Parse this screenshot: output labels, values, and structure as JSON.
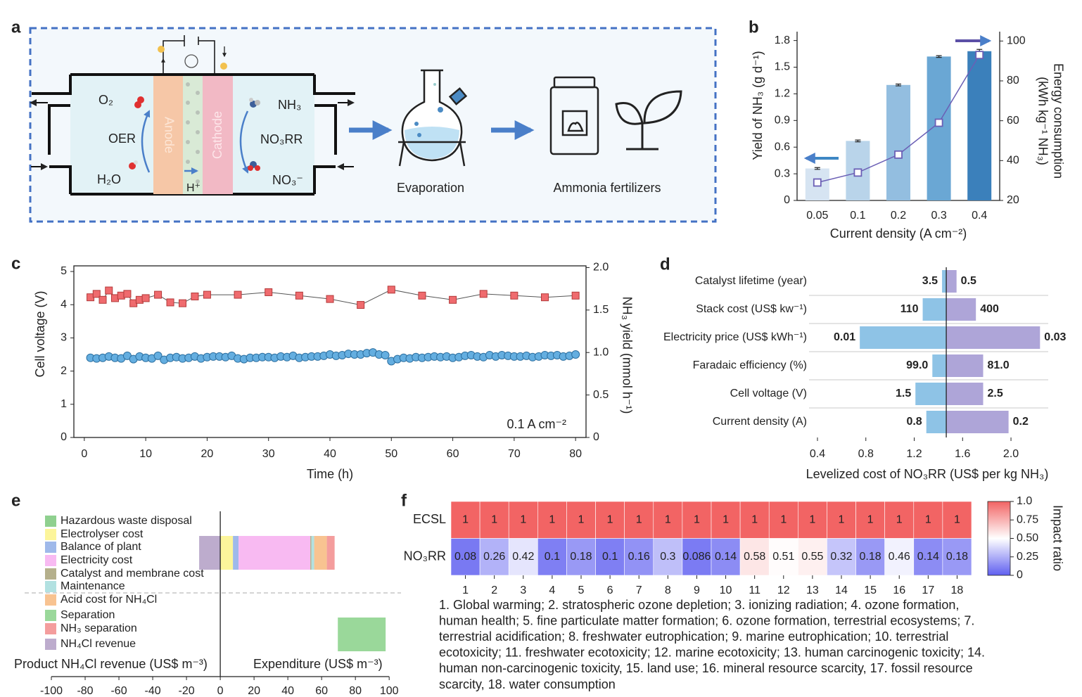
{
  "panel_labels": [
    "a",
    "b",
    "c",
    "d",
    "e",
    "f"
  ],
  "diagram": {
    "anode_side": [
      "O₂",
      "OER",
      "H₂O"
    ],
    "anode": "Anode",
    "cathode": "Cathode",
    "proton": "H⁺",
    "cathode_side": [
      "NH₃",
      "NO₃RR",
      "NO₃⁻"
    ],
    "steps": [
      "Evaporation",
      "Ammonia fertilizers"
    ]
  },
  "chart_data": [
    {
      "type": "bar",
      "xlabel": "Current density (A cm⁻²)",
      "ylabel": "Yield of NH₃ (g d⁻¹)",
      "y2label": [
        "Energy consumption",
        "(kWh kg⁻¹ NH₃)"
      ],
      "categories": [
        "0.05",
        "0.1",
        "0.2",
        "0.3",
        "0.4"
      ],
      "series": [
        {
          "values": [
            0.36,
            0.67,
            1.3,
            1.62,
            1.68
          ],
          "errors": [
            0.01,
            0.01,
            0.01,
            0.01,
            0.02
          ],
          "colors": [
            "#d6e4f2",
            "#b9d4ea",
            "#93bee0",
            "#6aa7d4",
            "#3b80bb"
          ]
        },
        {
          "values": [
            29,
            34,
            43,
            59,
            93
          ],
          "axis": "y2",
          "color": "#6b5fb5"
        }
      ],
      "ylim": [
        0,
        1.9
      ],
      "yticks": [
        0,
        0.3,
        0.6,
        0.9,
        1.2,
        1.5,
        1.8
      ],
      "y2lim": [
        20,
        104.7
      ],
      "y2ticks": [
        20,
        40,
        60,
        80,
        100
      ]
    },
    {
      "type": "line",
      "xlabel": "Time (h)",
      "ylabel": "Cell voltage (V)",
      "y2label": "NH₃ yield (mmol h⁻¹)",
      "annotation": "0.1 A cm⁻²",
      "series": [
        {
          "marker": "circle",
          "color": "#64aee0",
          "x": [
            1,
            2,
            3,
            4,
            5,
            6,
            7,
            8,
            9,
            10,
            11,
            12,
            13,
            14,
            15,
            16,
            17,
            18,
            19,
            20,
            21,
            22,
            23,
            24,
            25,
            26,
            27,
            28,
            29,
            30,
            31,
            32,
            33,
            34,
            35,
            36,
            37,
            38,
            39,
            40,
            41,
            42,
            43,
            44,
            45,
            46,
            47,
            48,
            49,
            50,
            51,
            52,
            53,
            54,
            55,
            56,
            57,
            58,
            59,
            60,
            61,
            62,
            63,
            64,
            65,
            66,
            67,
            68,
            69,
            70,
            71,
            72,
            73,
            74,
            75,
            76,
            77,
            78,
            79,
            80
          ],
          "values": [
            2.4,
            2.38,
            2.4,
            2.44,
            2.4,
            2.38,
            2.46,
            2.36,
            2.44,
            2.4,
            2.38,
            2.46,
            2.34,
            2.4,
            2.42,
            2.38,
            2.4,
            2.44,
            2.38,
            2.42,
            2.44,
            2.44,
            2.42,
            2.46,
            2.38,
            2.36,
            2.4,
            2.4,
            2.42,
            2.42,
            2.4,
            2.44,
            2.42,
            2.46,
            2.4,
            2.42,
            2.44,
            2.44,
            2.46,
            2.5,
            2.46,
            2.48,
            2.52,
            2.5,
            2.5,
            2.54,
            2.56,
            2.5,
            2.48,
            2.3,
            2.36,
            2.4,
            2.38,
            2.42,
            2.4,
            2.42,
            2.44,
            2.42,
            2.44,
            2.4,
            2.42,
            2.46,
            2.48,
            2.44,
            2.42,
            2.48,
            2.44,
            2.48,
            2.46,
            2.44,
            2.44,
            2.46,
            2.42,
            2.44,
            2.48,
            2.46,
            2.48,
            2.44,
            2.46,
            2.5
          ]
        },
        {
          "marker": "square",
          "color": "#ef6b6e",
          "axis": "y2",
          "x": [
            1,
            2,
            3,
            4,
            5,
            6,
            7,
            8,
            9,
            10,
            12,
            14,
            16,
            18,
            20,
            25,
            30,
            35,
            40,
            45,
            50,
            55,
            60,
            65,
            70,
            75,
            80
          ],
          "values": [
            1.65,
            1.69,
            1.62,
            1.73,
            1.64,
            1.67,
            1.69,
            1.58,
            1.62,
            1.64,
            1.68,
            1.59,
            1.58,
            1.66,
            1.68,
            1.68,
            1.71,
            1.67,
            1.63,
            1.56,
            1.74,
            1.67,
            1.62,
            1.69,
            1.67,
            1.65,
            1.67
          ]
        }
      ],
      "xlim": [
        -1.7,
        81.7
      ],
      "xticks": [
        0,
        10,
        20,
        30,
        40,
        50,
        60,
        70,
        80
      ],
      "ylim": [
        0,
        5.17
      ],
      "yticks": [
        0,
        1,
        2,
        3,
        4,
        5
      ],
      "y2lim": [
        0,
        2.02
      ],
      "y2ticks": [
        0,
        0.5,
        {
          "value": 1,
          "label": "1.0"
        },
        1.5,
        {
          "value": 2,
          "label": "2.0"
        }
      ]
    },
    {
      "type": "tornado",
      "xlabel": "Levelized cost of NO₃RR (US$ per kg NH₃)",
      "categories": [
        "Catalyst lifetime (year)",
        "Stack cost (US$ kw⁻¹)",
        "Electricity price (US$ kWh⁻¹)",
        "Faradaic efficiency (%)",
        "Cell voltage (V)",
        "Current density (A)"
      ],
      "base": 1.465,
      "series": [
        {
          "color": "#8ec3e6",
          "values": [
            1.43,
            1.27,
            0.75,
            1.35,
            1.21,
            1.3
          ],
          "labels": [
            "3.5",
            "110",
            "0.01",
            "99.0",
            "1.5",
            "0.8"
          ]
        },
        {
          "color": "#aea5d8",
          "values": [
            1.55,
            1.71,
            2.24,
            1.77,
            1.77,
            1.98
          ],
          "labels": [
            "0.5",
            "400",
            "0.03",
            "81.0",
            "2.5",
            "0.2"
          ]
        }
      ],
      "xlim": [
        0.214,
        2.308
      ],
      "xticks": [
        0.4,
        0.8,
        1.2,
        1.6,
        {
          "value": 2,
          "label": "2.0"
        }
      ]
    },
    {
      "type": "stacked_bar",
      "xlabel_left": "Product NH₄Cl revenue (US$ m⁻³)",
      "xlabel_right": "Expenditure (US$ m⁻³)",
      "bar_starts": [
        0,
        69.6
      ],
      "series": [
        {
          "name": "Hazardous waste disposal",
          "color": "#8fd08f",
          "values": [
            null,
            null
          ]
        },
        {
          "name": "Electrolyser cost",
          "color": "#fcf59b",
          "values": [
            7.5,
            null
          ]
        },
        {
          "name": "Balance of plant",
          "color": "#9fb9ea",
          "values": [
            3.3,
            null
          ]
        },
        {
          "name": "Electricity cost",
          "color": "#f8baf2",
          "values": [
            42.5,
            null
          ]
        },
        {
          "name": "Catalyst and membrane cost",
          "color": "#b5b08c",
          "values": [
            0.6,
            null
          ]
        },
        {
          "name": "Maintenance",
          "color": "#b2e1e1",
          "values": [
            1.7,
            null
          ]
        },
        {
          "name": "Acid cost for NH₄Cl",
          "color": "#f8c391",
          "values": [
            7.5,
            null
          ]
        },
        {
          "name": "Separation",
          "color": "#9ad89a",
          "values": [
            null,
            28.3
          ]
        },
        {
          "name": "NH₃ separation",
          "color": "#f49d9d",
          "values": [
            4.6,
            null
          ]
        },
        {
          "name": "NH₄Cl revenue",
          "color": "#bdaccd",
          "values": [
            -12.5,
            null
          ]
        }
      ],
      "xlim": [
        -107.5,
        107
      ],
      "xticks": [
        -100,
        -80,
        -60,
        -40,
        -20,
        0,
        20,
        40,
        60,
        80,
        100
      ]
    },
    {
      "type": "heatmap",
      "rows": [
        "ECSL",
        "NO₃RR"
      ],
      "categories": [
        1,
        2,
        3,
        4,
        5,
        6,
        7,
        8,
        9,
        10,
        11,
        12,
        13,
        14,
        15,
        16,
        17,
        18
      ],
      "values": [
        [
          1,
          1,
          1,
          1,
          1,
          1,
          1,
          1,
          1,
          1,
          1,
          1,
          1,
          1,
          1,
          1,
          1,
          1
        ],
        [
          0.08,
          0.26,
          0.42,
          0.1,
          0.18,
          0.1,
          0.16,
          0.3,
          0.086,
          0.14,
          0.58,
          0.51,
          0.55,
          0.32,
          0.18,
          0.46,
          0.14,
          0.18
        ]
      ],
      "colormap": [
        "#5f5ff0",
        "#ffffff",
        "#f26464"
      ],
      "clim": [
        0,
        1
      ],
      "cticks": [
        0,
        {
          "value": 0.25,
          "label": "0.25"
        },
        {
          "value": 0.5,
          "label": "0.50"
        },
        0.75,
        {
          "value": 1,
          "label": "1.0"
        }
      ],
      "colorbar_label": "Impact ratio",
      "caption_lines": [
        "1. Global warming; 2. stratospheric ozone depletion; 3. ionizing radiation; 4. ozone formation,",
        "human health; 5. fine particulate matter formation; 6. ozone formation, terrestrial ecosystems; 7.",
        "terrestrial acidification; 8. freshwater eutrophication; 9. marine eutrophication; 10. terrestrial",
        "ecotoxicity; 11. freshwater ecotoxicity; 12. marine ecotoxicity; 13. human carcinogenic toxicity; 14.",
        "human non-carcinogenic toxicity, 15. land use; 16. mineral resource scarcity, 17. fossil resource",
        "scarcity, 18. water consumption"
      ]
    }
  ]
}
